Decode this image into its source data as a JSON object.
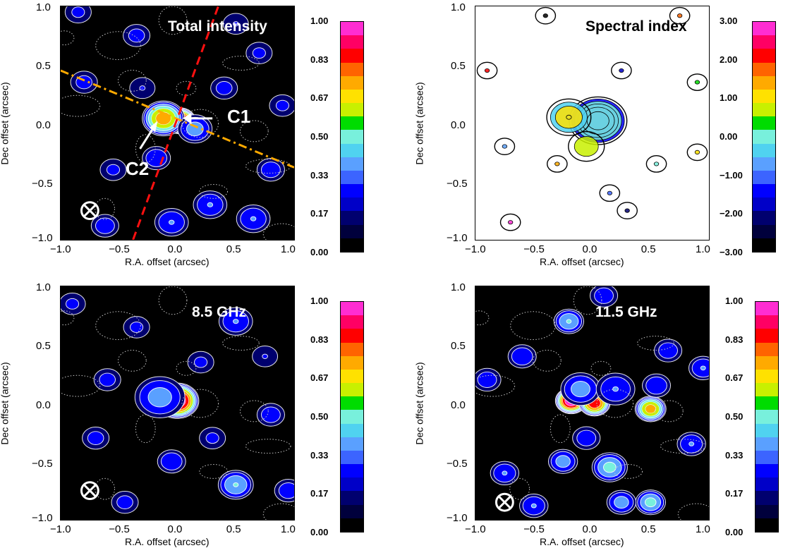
{
  "colors": {
    "colorbar": [
      "#000000",
      "#00003c",
      "#00006e",
      "#0000c8",
      "#0000ff",
      "#3c64ff",
      "#5aa0ff",
      "#50d2f0",
      "#78f0dc",
      "#00dc00",
      "#c8f000",
      "#ffe100",
      "#ffaa00",
      "#ff6400",
      "#ff0000",
      "#ff0064",
      "#ff2dd2"
    ],
    "orange_line": "#ffaa00",
    "red_line": "#ff1010"
  },
  "chart_data": [
    {
      "type": "heatmap",
      "title": "Total intensity",
      "xlabel": "R.A. offset (arcsec)",
      "ylabel": "Dec offset (arcsec)",
      "xlim": [
        -1.0,
        1.0
      ],
      "ylim": [
        -1.0,
        1.0
      ],
      "xticks": [
        "−1.0",
        "−0.5",
        "0.0",
        "0.5",
        "1.0"
      ],
      "yticks": [
        "1.0",
        "0.5",
        "0.0",
        "−0.5",
        "−1.0"
      ],
      "colorbar": {
        "labels": [
          "1.00",
          "0.83",
          "0.67",
          "0.50",
          "0.33",
          "0.17",
          "0.00"
        ],
        "range": [
          0,
          1
        ]
      },
      "annotations": [
        {
          "text": "C1",
          "x": 0.02,
          "y": 0.02
        },
        {
          "text": "C2",
          "x": -0.15,
          "y": 0.02
        }
      ],
      "beam_marker": {
        "x": -0.75,
        "y": -0.75
      },
      "peaks": [
        {
          "x": 0.02,
          "y": 0.02,
          "v": 1.0,
          "s": 0.05
        },
        {
          "x": -0.12,
          "y": 0.04,
          "v": 0.72,
          "s": 0.07
        },
        {
          "x": 0.15,
          "y": -0.05,
          "v": 0.35,
          "s": 0.06
        },
        {
          "x": -0.18,
          "y": -0.3,
          "v": 0.28,
          "s": 0.05
        },
        {
          "x": 0.28,
          "y": -0.7,
          "v": 0.3,
          "s": 0.06
        },
        {
          "x": -0.05,
          "y": -0.85,
          "v": 0.3,
          "s": 0.06
        },
        {
          "x": -0.62,
          "y": -0.88,
          "v": 0.25,
          "s": 0.05
        },
        {
          "x": 0.65,
          "y": -0.82,
          "v": 0.3,
          "s": 0.06
        },
        {
          "x": 0.8,
          "y": -0.4,
          "v": 0.25,
          "s": 0.05
        },
        {
          "x": -0.8,
          "y": 0.35,
          "v": 0.22,
          "s": 0.05
        },
        {
          "x": 0.4,
          "y": 0.3,
          "v": 0.22,
          "s": 0.05
        },
        {
          "x": -0.35,
          "y": 0.75,
          "v": 0.22,
          "s": 0.05
        },
        {
          "x": 0.7,
          "y": 0.6,
          "v": 0.2,
          "s": 0.05
        },
        {
          "x": -0.85,
          "y": 0.95,
          "v": 0.2,
          "s": 0.05
        },
        {
          "x": -0.55,
          "y": -0.4,
          "v": 0.2,
          "s": 0.05
        },
        {
          "x": 0.5,
          "y": 0.85,
          "v": 0.18,
          "s": 0.05
        },
        {
          "x": -0.3,
          "y": 0.3,
          "v": 0.18,
          "s": 0.05
        },
        {
          "x": 0.9,
          "y": 0.15,
          "v": 0.2,
          "s": 0.05
        }
      ]
    },
    {
      "type": "heatmap",
      "title": "Spectral index",
      "xlabel": "R.A. offset (arcsec)",
      "ylabel": "Dec offset (arcsec)",
      "xlim": [
        -1.0,
        1.0
      ],
      "ylim": [
        -1.0,
        1.0
      ],
      "xticks": [
        "−1.0",
        "−0.5",
        "0.0",
        "0.5",
        "1.0"
      ],
      "yticks": [
        "1.0",
        "0.5",
        "0.0",
        "−0.5",
        "−1.0"
      ],
      "colorbar": {
        "labels": [
          "3.00",
          "2.00",
          "1.00",
          "0.00",
          "−1.00",
          "−2.00",
          "−3.00"
        ],
        "range": [
          -3,
          3
        ]
      },
      "peaks": [
        {
          "x": 0.05,
          "y": 0.02,
          "v": 1.0,
          "s": 0.1
        },
        {
          "x": -0.2,
          "y": 0.05,
          "v": 0.6,
          "s": 0.08
        },
        {
          "x": -0.05,
          "y": -0.2,
          "v": 0.4,
          "s": 0.07
        },
        {
          "x": 0.75,
          "y": 0.92,
          "v": 0.3,
          "s": 0.04
        },
        {
          "x": -0.7,
          "y": -0.85,
          "v": 0.3,
          "s": 0.04
        },
        {
          "x": 0.3,
          "y": -0.75,
          "v": 0.3,
          "s": 0.04
        },
        {
          "x": 0.15,
          "y": -0.6,
          "v": 0.3,
          "s": 0.04
        },
        {
          "x": 0.55,
          "y": -0.35,
          "v": 0.3,
          "s": 0.04
        },
        {
          "x": 0.9,
          "y": -0.25,
          "v": 0.3,
          "s": 0.04
        },
        {
          "x": -0.9,
          "y": 0.45,
          "v": 0.3,
          "s": 0.04
        },
        {
          "x": -0.4,
          "y": 0.92,
          "v": 0.3,
          "s": 0.04
        },
        {
          "x": 0.25,
          "y": 0.45,
          "v": 0.3,
          "s": 0.04
        },
        {
          "x": -0.75,
          "y": -0.2,
          "v": 0.3,
          "s": 0.04
        },
        {
          "x": 0.9,
          "y": 0.35,
          "v": 0.3,
          "s": 0.04
        },
        {
          "x": -0.3,
          "y": -0.35,
          "v": 0.3,
          "s": 0.04
        }
      ]
    },
    {
      "type": "heatmap",
      "title": "8.5 GHz",
      "xlabel": "R.A. offset (arcsec)",
      "ylabel": "Dec offset (arcsec)",
      "xlim": [
        -1.0,
        1.0
      ],
      "ylim": [
        -1.0,
        1.0
      ],
      "xticks": [
        "−1.0",
        "−0.5",
        "0.0",
        "0.5",
        "1.0"
      ],
      "yticks": [
        "1.0",
        "0.5",
        "0.0",
        "−0.5",
        "−1.0"
      ],
      "colorbar": {
        "labels": [
          "1.00",
          "0.83",
          "0.67",
          "0.50",
          "0.33",
          "0.17",
          "0.00"
        ],
        "range": [
          0,
          1
        ]
      },
      "beam_marker": {
        "x": -0.75,
        "y": -0.75
      },
      "peaks": [
        {
          "x": 0.0,
          "y": 0.02,
          "v": 1.0,
          "s": 0.07
        },
        {
          "x": -0.15,
          "y": 0.05,
          "v": 0.35,
          "s": 0.09
        },
        {
          "x": 0.5,
          "y": -0.7,
          "v": 0.42,
          "s": 0.06
        },
        {
          "x": 0.5,
          "y": 0.7,
          "v": 0.3,
          "s": 0.06
        },
        {
          "x": -0.05,
          "y": -0.5,
          "v": 0.28,
          "s": 0.05
        },
        {
          "x": -0.6,
          "y": 0.2,
          "v": 0.22,
          "s": 0.05
        },
        {
          "x": 0.8,
          "y": -0.1,
          "v": 0.25,
          "s": 0.05
        },
        {
          "x": -0.7,
          "y": -0.3,
          "v": 0.22,
          "s": 0.05
        },
        {
          "x": 0.95,
          "y": -0.75,
          "v": 0.25,
          "s": 0.05
        },
        {
          "x": -0.35,
          "y": 0.65,
          "v": 0.2,
          "s": 0.05
        },
        {
          "x": 0.2,
          "y": 0.35,
          "v": 0.2,
          "s": 0.05
        },
        {
          "x": -0.45,
          "y": -0.85,
          "v": 0.22,
          "s": 0.05
        },
        {
          "x": 0.3,
          "y": -0.3,
          "v": 0.2,
          "s": 0.05
        },
        {
          "x": -0.9,
          "y": 0.85,
          "v": 0.2,
          "s": 0.05
        },
        {
          "x": 0.75,
          "y": 0.4,
          "v": 0.18,
          "s": 0.05
        }
      ]
    },
    {
      "type": "heatmap",
      "title": "11.5 GHz",
      "xlabel": "R.A. offset (arcsec)",
      "ylabel": "Dec offset (arcsec)",
      "xlim": [
        -1.0,
        1.0
      ],
      "ylim": [
        -1.0,
        1.0
      ],
      "xticks": [
        "−1.0",
        "−0.5",
        "0.0",
        "0.5",
        "1.0"
      ],
      "yticks": [
        "1.0",
        "0.5",
        "0.0",
        "−0.5",
        "−1.0"
      ],
      "colorbar": {
        "labels": [
          "1.00",
          "0.83",
          "0.67",
          "0.50",
          "0.33",
          "0.17",
          "0.00"
        ],
        "range": [
          0,
          1
        ]
      },
      "beam_marker": {
        "x": -0.75,
        "y": -0.85
      },
      "peaks": [
        {
          "x": -0.18,
          "y": 0.02,
          "v": 1.0,
          "s": 0.05
        },
        {
          "x": 0.02,
          "y": 0.0,
          "v": 0.85,
          "s": 0.05
        },
        {
          "x": 0.5,
          "y": -0.05,
          "v": 0.7,
          "s": 0.05
        },
        {
          "x": -0.1,
          "y": 0.12,
          "v": 0.35,
          "s": 0.07
        },
        {
          "x": 0.2,
          "y": 0.12,
          "v": 0.3,
          "s": 0.07
        },
        {
          "x": 0.15,
          "y": -0.55,
          "v": 0.45,
          "s": 0.06
        },
        {
          "x": 0.5,
          "y": -0.85,
          "v": 0.45,
          "s": 0.05
        },
        {
          "x": -0.2,
          "y": 0.7,
          "v": 0.42,
          "s": 0.05
        },
        {
          "x": 0.25,
          "y": -0.85,
          "v": 0.35,
          "s": 0.05
        },
        {
          "x": -0.25,
          "y": -0.5,
          "v": 0.35,
          "s": 0.05
        },
        {
          "x": 0.85,
          "y": -0.35,
          "v": 0.3,
          "s": 0.05
        },
        {
          "x": -0.6,
          "y": 0.4,
          "v": 0.28,
          "s": 0.05
        },
        {
          "x": -0.75,
          "y": -0.6,
          "v": 0.3,
          "s": 0.05
        },
        {
          "x": 0.65,
          "y": 0.45,
          "v": 0.25,
          "s": 0.05
        },
        {
          "x": -0.9,
          "y": 0.2,
          "v": 0.25,
          "s": 0.05
        },
        {
          "x": 0.95,
          "y": 0.3,
          "v": 0.3,
          "s": 0.05
        },
        {
          "x": -0.5,
          "y": -0.88,
          "v": 0.3,
          "s": 0.05
        },
        {
          "x": 0.1,
          "y": 0.92,
          "v": 0.25,
          "s": 0.05
        },
        {
          "x": -0.05,
          "y": -0.3,
          "v": 0.25,
          "s": 0.05
        },
        {
          "x": 0.55,
          "y": 0.15,
          "v": 0.28,
          "s": 0.05
        }
      ]
    }
  ]
}
